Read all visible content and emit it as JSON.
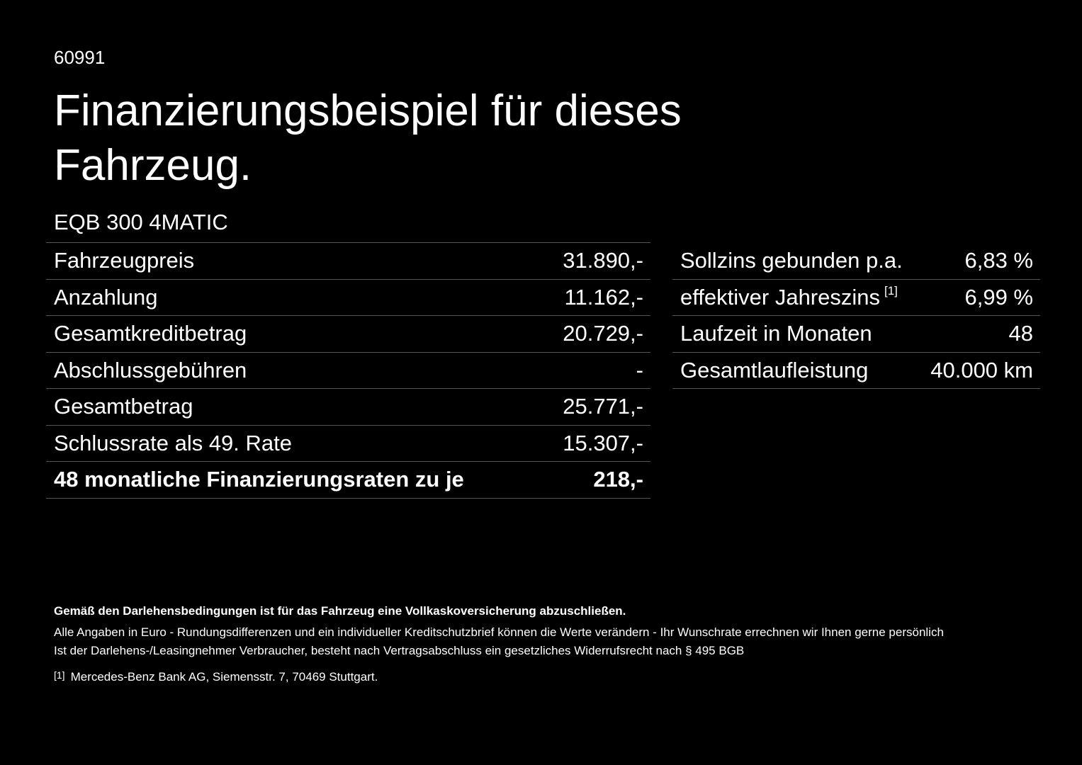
{
  "header": {
    "id": "60991",
    "title": "Finanzierungsbeispiel für dieses Fahrzeug.",
    "model": "EQB 300 4MATIC"
  },
  "left_table": {
    "rows": [
      [
        "Fahrzeugpreis",
        "31.890,-"
      ],
      [
        "Anzahlung",
        "11.162,-"
      ],
      [
        "Gesamtkreditbetrag",
        "20.729,-"
      ],
      [
        "Abschlussgebühren",
        "-"
      ],
      [
        "Gesamtbetrag",
        "25.771,-"
      ],
      [
        "Schlussrate als 49. Rate",
        "15.307,-"
      ],
      [
        "48 monatliche Finanzierungsraten zu je",
        "218,-"
      ]
    ]
  },
  "right_table": {
    "rows": [
      {
        "label": "Sollzins gebunden p.a.",
        "value": "6,83 %"
      },
      {
        "label": "effektiver Jahreszins",
        "note": "[1]",
        "value": "6,99 %"
      },
      {
        "label": "Laufzeit in Monaten",
        "value": "48"
      },
      {
        "label": "Gesamtlaufleistung",
        "value": "40.000 km"
      }
    ]
  },
  "footer": {
    "notice": "Gemäß den Darlehensbedingungen ist für das Fahrzeug eine Vollkaskoversicherung abzuschließen.",
    "lines": [
      "Alle Angaben in Euro - Rundungsdifferenzen und ein individueller Kreditschutzbrief können die Werte verändern - Ihr Wunschrate errechnen wir Ihnen gerne persönlich",
      "Ist der Darlehens-/Leasingnehmer Verbraucher, besteht nach Vertragsabschluss ein gesetzliches Widerrufsrecht nach § 495 BGB"
    ],
    "footnote": {
      "marker": "[1]",
      "text": "Mercedes-Benz Bank AG, Siemensstr. 7, 70469 Stuttgart."
    }
  }
}
